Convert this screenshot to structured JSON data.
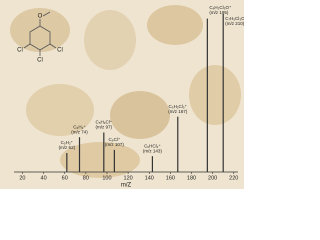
{
  "chart_data": {
    "type": "bar",
    "xlabel": "m/Z",
    "x": [
      62,
      74,
      97,
      107,
      143,
      167,
      195,
      210
    ],
    "values": [
      12,
      22,
      25,
      14,
      10,
      35,
      97,
      100
    ],
    "peak_labels": [
      [
        "C₅H₂⁺",
        "(m/z 62)"
      ],
      [
        "C₆H₂⁺",
        "(m/z 74)"
      ],
      [
        "C₅H₂Cl⁺",
        "(m/z 97)"
      ],
      [
        "C₆Cl⁺",
        "(m/z 107)"
      ],
      [
        "C₆HCl₂⁺",
        "(m/z 143)"
      ],
      [
        "C₅H₂Cl₃⁺",
        "(m/z 167)"
      ],
      [
        "C₆H₂Cl₃O⁺",
        "(m/z 195)"
      ],
      [
        "C₇H₅Cl₃O⁺",
        "(m/z 210)"
      ]
    ],
    "structure_labels": [
      "Cl",
      "Cl",
      "Cl",
      "O"
    ],
    "color": "#333333",
    "xlim": [
      12,
      224
    ],
    "ylim": [
      0,
      105
    ],
    "xticks": [
      20,
      40,
      60,
      80,
      100,
      120,
      140,
      160,
      180,
      200,
      220
    ]
  }
}
